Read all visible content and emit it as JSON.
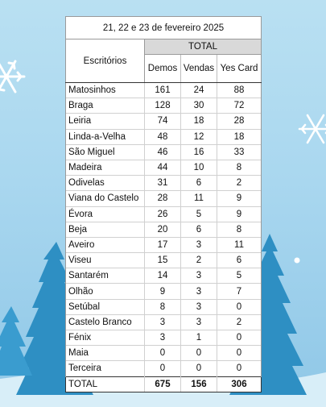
{
  "chart_data": {
    "type": "table",
    "title": "21, 22 e 23 de fevereiro 2025",
    "row_header": "Escritórios",
    "group_header": "TOTAL",
    "columns": [
      "Demos",
      "Vendas",
      "Yes Card"
    ],
    "rows": [
      {
        "name": "Matosinhos",
        "values": [
          "161",
          "24",
          "88"
        ]
      },
      {
        "name": "Braga",
        "values": [
          "128",
          "30",
          "72"
        ]
      },
      {
        "name": "Leiria",
        "values": [
          "74",
          "18",
          "28"
        ]
      },
      {
        "name": "Linda-a-Velha",
        "values": [
          "48",
          "12",
          "18"
        ]
      },
      {
        "name": "São Miguel",
        "values": [
          "46",
          "16",
          "33"
        ]
      },
      {
        "name": "Madeira",
        "values": [
          "44",
          "10",
          "8"
        ]
      },
      {
        "name": "Odivelas",
        "values": [
          "31",
          "6",
          "2"
        ]
      },
      {
        "name": "Viana do Castelo",
        "values": [
          "28",
          "11",
          "9"
        ]
      },
      {
        "name": "Évora",
        "values": [
          "26",
          "5",
          "9"
        ]
      },
      {
        "name": "Beja",
        "values": [
          "20",
          "6",
          "8"
        ]
      },
      {
        "name": "Aveiro",
        "values": [
          "17",
          "3",
          "11"
        ]
      },
      {
        "name": "Viseu",
        "values": [
          "15",
          "2",
          "6"
        ]
      },
      {
        "name": "Santarém",
        "values": [
          "14",
          "3",
          "5"
        ]
      },
      {
        "name": "Olhão",
        "values": [
          "9",
          "3",
          "7"
        ]
      },
      {
        "name": "Setúbal",
        "values": [
          "8",
          "3",
          "0"
        ]
      },
      {
        "name": "Castelo Branco",
        "values": [
          "3",
          "3",
          "2"
        ]
      },
      {
        "name": "Fénix",
        "values": [
          "3",
          "1",
          "0"
        ]
      },
      {
        "name": "Maia",
        "values": [
          "0",
          "0",
          "0"
        ]
      },
      {
        "name": "Terceira",
        "values": [
          "0",
          "0",
          "0"
        ]
      }
    ],
    "total": {
      "name": "TOTAL",
      "values": [
        "675",
        "156",
        "306"
      ]
    }
  },
  "decor": {
    "background_color": "#a9d7ef",
    "tree_color": "#2e8fc3",
    "snow_color": "#ffffff",
    "icons": [
      "snowflake-icon",
      "pine-tree-icon"
    ]
  }
}
